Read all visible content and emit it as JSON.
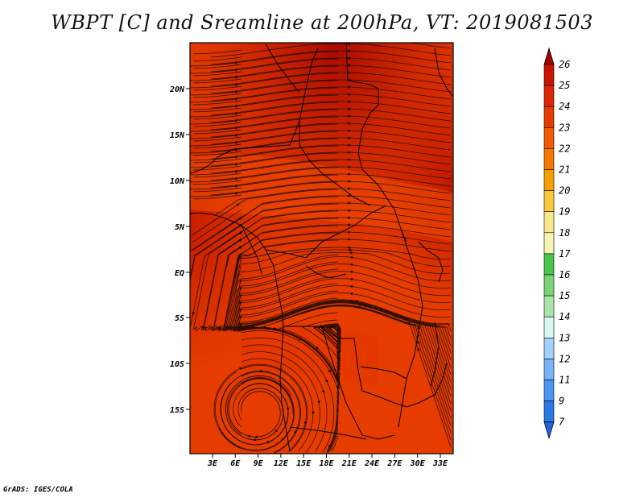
{
  "title": "WBPT [C] and Sreamline at 200hPa, VT: 2019081503",
  "credit": "GrADS: IGES/COLA",
  "lat_labels": [
    "20N",
    "15N",
    "10N",
    "5N",
    "EQ",
    "5S",
    "10S",
    "15S"
  ],
  "lon_labels": [
    "3E",
    "6E",
    "9E",
    "12E",
    "15E",
    "18E",
    "21E",
    "24E",
    "27E",
    "30E",
    "33E"
  ],
  "colorbar": {
    "labels": [
      "26",
      "25",
      "24",
      "23",
      "22",
      "21",
      "20",
      "19",
      "18",
      "17",
      "16",
      "15",
      "14",
      "13",
      "12",
      "11",
      "9",
      "7"
    ],
    "colors": [
      "#a50000",
      "#c81400",
      "#dc2800",
      "#e63c00",
      "#f05a00",
      "#f57800",
      "#f5a000",
      "#fac83c",
      "#fae68c",
      "#f5f5b4",
      "#46c846",
      "#78d278",
      "#aae6aa",
      "#dcf5f5",
      "#a0d2fa",
      "#78b4fa",
      "#4a96f5",
      "#2878e6",
      "#1e64dc"
    ]
  }
}
